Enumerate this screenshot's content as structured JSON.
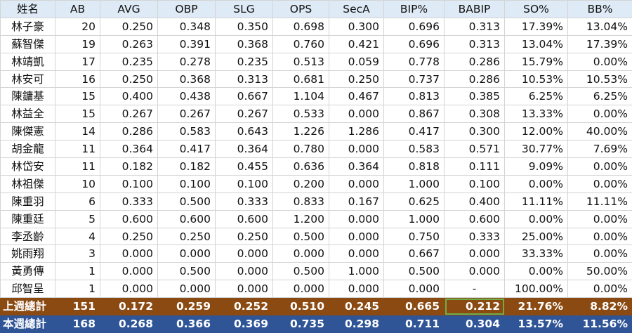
{
  "headers": [
    "姓名",
    "AB",
    "AVG",
    "OBP",
    "SLG",
    "OPS",
    "SecA",
    "BIP%",
    "BABIP",
    "SO%",
    "BB%"
  ],
  "rows": [
    [
      "林子豪",
      "20",
      "0.250",
      "0.348",
      "0.350",
      "0.698",
      "0.300",
      "0.696",
      "0.313",
      "17.39%",
      "13.04%"
    ],
    [
      "蘇智傑",
      "19",
      "0.263",
      "0.391",
      "0.368",
      "0.760",
      "0.421",
      "0.696",
      "0.313",
      "13.04%",
      "17.39%"
    ],
    [
      "林靖凱",
      "17",
      "0.235",
      "0.278",
      "0.235",
      "0.513",
      "0.059",
      "0.778",
      "0.286",
      "15.79%",
      "0.00%"
    ],
    [
      "林安可",
      "16",
      "0.250",
      "0.368",
      "0.313",
      "0.681",
      "0.250",
      "0.737",
      "0.286",
      "10.53%",
      "10.53%"
    ],
    [
      "陳鏞基",
      "15",
      "0.400",
      "0.438",
      "0.667",
      "1.104",
      "0.467",
      "0.813",
      "0.385",
      "6.25%",
      "6.25%"
    ],
    [
      "林益全",
      "15",
      "0.267",
      "0.267",
      "0.267",
      "0.533",
      "0.000",
      "0.867",
      "0.308",
      "13.33%",
      "0.00%"
    ],
    [
      "陳傑憲",
      "14",
      "0.286",
      "0.583",
      "0.643",
      "1.226",
      "1.286",
      "0.417",
      "0.300",
      "12.00%",
      "40.00%"
    ],
    [
      "胡金龍",
      "11",
      "0.364",
      "0.417",
      "0.364",
      "0.780",
      "0.000",
      "0.583",
      "0.571",
      "30.77%",
      "7.69%"
    ],
    [
      "林岱安",
      "11",
      "0.182",
      "0.182",
      "0.455",
      "0.636",
      "0.364",
      "0.818",
      "0.111",
      "9.09%",
      "0.00%"
    ],
    [
      "林祖傑",
      "10",
      "0.100",
      "0.100",
      "0.100",
      "0.200",
      "0.000",
      "1.000",
      "0.100",
      "0.00%",
      "0.00%"
    ],
    [
      "陳重羽",
      "6",
      "0.333",
      "0.500",
      "0.333",
      "0.833",
      "0.167",
      "0.625",
      "0.400",
      "11.11%",
      "11.11%"
    ],
    [
      "陳重廷",
      "5",
      "0.600",
      "0.600",
      "0.600",
      "1.200",
      "0.000",
      "1.000",
      "0.600",
      "0.00%",
      "0.00%"
    ],
    [
      "李丞齡",
      "4",
      "0.250",
      "0.250",
      "0.250",
      "0.500",
      "0.000",
      "0.750",
      "0.333",
      "25.00%",
      "0.00%"
    ],
    [
      "姚雨翔",
      "3",
      "0.000",
      "0.000",
      "0.000",
      "0.000",
      "0.000",
      "0.667",
      "0.000",
      "33.33%",
      "0.00%"
    ],
    [
      "黃勇傳",
      "1",
      "0.000",
      "0.500",
      "0.000",
      "0.500",
      "1.000",
      "0.500",
      "0.000",
      "0.00%",
      "50.00%"
    ],
    [
      "邱智呈",
      "1",
      "0.000",
      "0.000",
      "0.000",
      "0.000",
      "0.000",
      "0.000",
      "-",
      "100.00%",
      "0.00%"
    ]
  ],
  "totals": {
    "last_week": [
      "上週總計",
      "151",
      "0.172",
      "0.259",
      "0.252",
      "0.510",
      "0.245",
      "0.665",
      "0.212",
      "21.76%",
      "8.82%"
    ],
    "this_week": [
      "本週總計",
      "168",
      "0.268",
      "0.366",
      "0.369",
      "0.735",
      "0.298",
      "0.711",
      "0.304",
      "13.57%",
      "11.56%"
    ]
  },
  "colors": {
    "header_bg": "#deeaf6",
    "last_week_bg": "#8a4a12",
    "this_week_bg": "#2f5597",
    "highlight_outline": "#70ad47"
  }
}
